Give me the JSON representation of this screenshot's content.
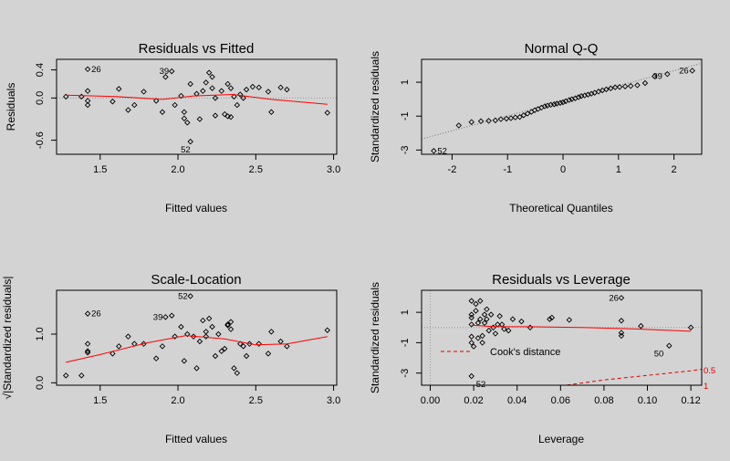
{
  "chart_data": [
    {
      "type": "scatter",
      "title": "Residuals vs Fitted",
      "xlabel": "Fitted values",
      "ylabel": "Residuals",
      "xlim": [
        1.22,
        3.02
      ],
      "ylim": [
        -0.8,
        0.55
      ],
      "xticks": [
        1.5,
        2.0,
        2.5,
        3.0
      ],
      "xtick_labels": [
        "1.5",
        "2.0",
        "2.5",
        "3.0"
      ],
      "yticks": [
        0.4,
        0.0,
        -0.6
      ],
      "ytick_labels": [
        "0.4",
        "0.0",
        "-0.6"
      ],
      "reference_line_y": 0,
      "points": [
        [
          1.28,
          0.02
        ],
        [
          1.38,
          0.02
        ],
        [
          1.42,
          0.41
        ],
        [
          1.42,
          -0.04
        ],
        [
          1.42,
          -0.1
        ],
        [
          1.42,
          0.1
        ],
        [
          1.58,
          -0.05
        ],
        [
          1.62,
          0.13
        ],
        [
          1.68,
          -0.17
        ],
        [
          1.72,
          -0.1
        ],
        [
          1.78,
          0.09
        ],
        [
          1.86,
          -0.04
        ],
        [
          1.9,
          -0.2
        ],
        [
          1.92,
          0.3
        ],
        [
          1.96,
          0.38
        ],
        [
          1.98,
          -0.1
        ],
        [
          2.02,
          0.03
        ],
        [
          2.04,
          -0.2
        ],
        [
          2.04,
          -0.29
        ],
        [
          2.06,
          -0.35
        ],
        [
          2.08,
          -0.62
        ],
        [
          2.08,
          0.2
        ],
        [
          2.12,
          0.06
        ],
        [
          2.14,
          -0.3
        ],
        [
          2.16,
          0.1
        ],
        [
          2.18,
          0.22
        ],
        [
          2.2,
          0.36
        ],
        [
          2.22,
          0.3
        ],
        [
          2.22,
          0.14
        ],
        [
          2.24,
          -0.25
        ],
        [
          2.24,
          0.0
        ],
        [
          2.28,
          0.1
        ],
        [
          2.3,
          -0.23
        ],
        [
          2.32,
          -0.26
        ],
        [
          2.32,
          0.2
        ],
        [
          2.34,
          -0.27
        ],
        [
          2.34,
          0.14
        ],
        [
          2.36,
          0.02
        ],
        [
          2.38,
          -0.1
        ],
        [
          2.4,
          0.05
        ],
        [
          2.42,
          0.0
        ],
        [
          2.44,
          0.12
        ],
        [
          2.48,
          0.16
        ],
        [
          2.52,
          0.15
        ],
        [
          2.58,
          0.09
        ],
        [
          2.6,
          -0.2
        ],
        [
          2.66,
          0.15
        ],
        [
          2.7,
          0.12
        ],
        [
          2.96,
          -0.21
        ]
      ],
      "smooth": [
        [
          1.28,
          0.04
        ],
        [
          1.6,
          0.02
        ],
        [
          1.9,
          -0.02
        ],
        [
          2.1,
          0.03
        ],
        [
          2.35,
          0.05
        ],
        [
          2.6,
          -0.02
        ],
        [
          2.96,
          -0.09
        ]
      ],
      "point_labels": [
        {
          "text": "26",
          "x": 1.42,
          "y": 0.41
        },
        {
          "text": "39",
          "x": 1.96,
          "y": 0.38
        },
        {
          "text": "52",
          "x": 2.08,
          "y": -0.62
        }
      ]
    },
    {
      "type": "scatter",
      "title": "Normal Q-Q",
      "xlabel": "Theoretical Quantiles",
      "ylabel": "Standardized residuals",
      "xlim": [
        -2.55,
        2.5
      ],
      "ylim": [
        -3.25,
        2.35
      ],
      "xticks": [
        -2,
        -1,
        0,
        1,
        2
      ],
      "xtick_labels": [
        "-2",
        "-1",
        "0",
        "1",
        "2"
      ],
      "yticks": [
        1,
        -1,
        -3
      ],
      "ytick_labels": [
        "1",
        "-1",
        "-3"
      ],
      "reference_line": [
        [
          -2.55,
          -2.35
        ],
        [
          2.5,
          2.12
        ]
      ],
      "points": [
        [
          -2.33,
          -3.05
        ],
        [
          -1.88,
          -1.55
        ],
        [
          -1.65,
          -1.35
        ],
        [
          -1.48,
          -1.3
        ],
        [
          -1.34,
          -1.28
        ],
        [
          -1.22,
          -1.25
        ],
        [
          -1.12,
          -1.18
        ],
        [
          -1.02,
          -1.15
        ],
        [
          -0.94,
          -1.12
        ],
        [
          -0.86,
          -1.08
        ],
        [
          -0.78,
          -1.05
        ],
        [
          -0.71,
          -0.95
        ],
        [
          -0.64,
          -0.85
        ],
        [
          -0.57,
          -0.75
        ],
        [
          -0.51,
          -0.65
        ],
        [
          -0.45,
          -0.58
        ],
        [
          -0.39,
          -0.5
        ],
        [
          -0.33,
          -0.42
        ],
        [
          -0.28,
          -0.38
        ],
        [
          -0.22,
          -0.33
        ],
        [
          -0.16,
          -0.3
        ],
        [
          -0.11,
          -0.26
        ],
        [
          -0.05,
          -0.22
        ],
        [
          0.0,
          -0.18
        ],
        [
          0.05,
          -0.12
        ],
        [
          0.11,
          -0.05
        ],
        [
          0.16,
          0.0
        ],
        [
          0.22,
          0.05
        ],
        [
          0.28,
          0.12
        ],
        [
          0.33,
          0.18
        ],
        [
          0.39,
          0.22
        ],
        [
          0.45,
          0.27
        ],
        [
          0.51,
          0.32
        ],
        [
          0.57,
          0.38
        ],
        [
          0.64,
          0.45
        ],
        [
          0.71,
          0.52
        ],
        [
          0.78,
          0.58
        ],
        [
          0.86,
          0.64
        ],
        [
          0.94,
          0.7
        ],
        [
          1.02,
          0.72
        ],
        [
          1.12,
          0.75
        ],
        [
          1.22,
          0.78
        ],
        [
          1.34,
          0.82
        ],
        [
          1.48,
          0.95
        ],
        [
          1.65,
          1.35
        ],
        [
          1.88,
          1.48
        ],
        [
          2.33,
          1.68
        ]
      ],
      "point_labels": [
        {
          "text": "39",
          "x": 1.65,
          "y": 1.35
        },
        {
          "text": "26",
          "x": 2.33,
          "y": 1.68
        },
        {
          "text": "52",
          "x": -2.33,
          "y": -3.05
        }
      ]
    },
    {
      "type": "scatter",
      "title": "Scale-Location",
      "xlabel": "Fitted values",
      "ylabel": "√|Standardized residuals|",
      "xlim": [
        1.22,
        3.02
      ],
      "ylim": [
        -0.05,
        1.9
      ],
      "xticks": [
        1.5,
        2.0,
        2.5,
        3.0
      ],
      "xtick_labels": [
        "1.5",
        "2.0",
        "2.5",
        "3.0"
      ],
      "yticks": [
        0.0,
        1.0
      ],
      "ytick_labels": [
        "0.0",
        "1.0"
      ],
      "points": [
        [
          1.28,
          0.15
        ],
        [
          1.38,
          0.15
        ],
        [
          1.42,
          1.42
        ],
        [
          1.42,
          0.65
        ],
        [
          1.42,
          0.62
        ],
        [
          1.42,
          0.8
        ],
        [
          1.58,
          0.6
        ],
        [
          1.62,
          0.75
        ],
        [
          1.68,
          0.95
        ],
        [
          1.72,
          0.8
        ],
        [
          1.78,
          0.8
        ],
        [
          1.86,
          0.5
        ],
        [
          1.9,
          0.75
        ],
        [
          1.92,
          1.35
        ],
        [
          1.96,
          1.38
        ],
        [
          1.98,
          0.95
        ],
        [
          2.02,
          1.15
        ],
        [
          2.04,
          0.45
        ],
        [
          2.06,
          1.0
        ],
        [
          2.08,
          1.78
        ],
        [
          2.1,
          0.95
        ],
        [
          2.12,
          0.3
        ],
        [
          2.14,
          0.85
        ],
        [
          2.16,
          1.28
        ],
        [
          2.18,
          1.05
        ],
        [
          2.18,
          0.95
        ],
        [
          2.2,
          1.32
        ],
        [
          2.22,
          1.15
        ],
        [
          2.24,
          0.55
        ],
        [
          2.26,
          1.0
        ],
        [
          2.28,
          0.65
        ],
        [
          2.3,
          0.7
        ],
        [
          2.32,
          1.18
        ],
        [
          2.32,
          1.2
        ],
        [
          2.34,
          1.25
        ],
        [
          2.34,
          1.1
        ],
        [
          2.36,
          0.3
        ],
        [
          2.38,
          0.2
        ],
        [
          2.4,
          0.8
        ],
        [
          2.42,
          0.75
        ],
        [
          2.44,
          0.55
        ],
        [
          2.46,
          0.8
        ],
        [
          2.52,
          0.8
        ],
        [
          2.58,
          0.6
        ],
        [
          2.6,
          1.05
        ],
        [
          2.66,
          0.85
        ],
        [
          2.7,
          0.75
        ],
        [
          2.96,
          1.08
        ]
      ],
      "smooth": [
        [
          1.28,
          0.42
        ],
        [
          1.5,
          0.58
        ],
        [
          1.8,
          0.82
        ],
        [
          2.05,
          0.97
        ],
        [
          2.3,
          0.9
        ],
        [
          2.5,
          0.78
        ],
        [
          2.7,
          0.8
        ],
        [
          2.96,
          0.95
        ]
      ],
      "point_labels": [
        {
          "text": "26",
          "x": 1.42,
          "y": 1.42
        },
        {
          "text": "39",
          "x": 1.92,
          "y": 1.35
        },
        {
          "text": "52",
          "x": 2.08,
          "y": 1.78
        }
      ]
    },
    {
      "type": "scatter",
      "title": "Residuals vs Leverage",
      "xlabel": "Leverage",
      "ylabel": "Standardized residuals",
      "xlim": [
        -0.004,
        0.125
      ],
      "ylim": [
        -3.8,
        2.45
      ],
      "xticks": [
        0.0,
        0.02,
        0.04,
        0.06,
        0.08,
        0.1,
        0.12
      ],
      "xtick_labels": [
        "0.00",
        "0.02",
        "0.04",
        "0.06",
        "0.08",
        "0.10",
        "0.12"
      ],
      "yticks": [
        1,
        -1,
        -3
      ],
      "ytick_labels": [
        "1",
        "-1",
        "-3"
      ],
      "reference_line_y": 0,
      "reference_line_x": 0,
      "points": [
        [
          0.019,
          1.75
        ],
        [
          0.019,
          0.85
        ],
        [
          0.019,
          0.65
        ],
        [
          0.019,
          0.2
        ],
        [
          0.019,
          -0.6
        ],
        [
          0.019,
          -1.0
        ],
        [
          0.019,
          -3.2
        ],
        [
          0.02,
          -1.25
        ],
        [
          0.021,
          1.55
        ],
        [
          0.021,
          1.1
        ],
        [
          0.022,
          0.3
        ],
        [
          0.022,
          -0.7
        ],
        [
          0.023,
          1.75
        ],
        [
          0.023,
          0.55
        ],
        [
          0.024,
          -0.55
        ],
        [
          0.024,
          -1.0
        ],
        [
          0.025,
          0.85
        ],
        [
          0.025,
          0.3
        ],
        [
          0.026,
          1.2
        ],
        [
          0.026,
          0.55
        ],
        [
          0.027,
          -0.2
        ],
        [
          0.028,
          0.85
        ],
        [
          0.029,
          0.0
        ],
        [
          0.03,
          -0.4
        ],
        [
          0.031,
          0.2
        ],
        [
          0.032,
          0.75
        ],
        [
          0.033,
          0.2
        ],
        [
          0.034,
          -0.1
        ],
        [
          0.036,
          -0.2
        ],
        [
          0.038,
          0.55
        ],
        [
          0.042,
          0.4
        ],
        [
          0.046,
          0.0
        ],
        [
          0.055,
          0.55
        ],
        [
          0.056,
          0.65
        ],
        [
          0.064,
          0.5
        ],
        [
          0.088,
          -0.55
        ],
        [
          0.088,
          -0.35
        ],
        [
          0.088,
          0.45
        ],
        [
          0.097,
          0.1
        ],
        [
          0.11,
          -1.2
        ],
        [
          0.12,
          0.0
        ],
        [
          0.088,
          1.95
        ]
      ],
      "smooth": [
        [
          0.019,
          0.15
        ],
        [
          0.03,
          0.05
        ],
        [
          0.045,
          0.05
        ],
        [
          0.07,
          0.0
        ],
        [
          0.095,
          -0.1
        ],
        [
          0.12,
          -0.25
        ]
      ],
      "point_labels": [
        {
          "text": "26",
          "x": 0.088,
          "y": 1.95
        },
        {
          "text": "50",
          "x": 0.11,
          "y": -1.2
        },
        {
          "text": "52",
          "x": 0.019,
          "y": -3.2
        }
      ],
      "cooks_distance": {
        "legend": "Cook's distance",
        "level_labels": [
          "0.5",
          "1"
        ],
        "curve_05": [
          [
            0.06,
            -3.85
          ],
          [
            0.08,
            -3.45
          ],
          [
            0.1,
            -3.15
          ],
          [
            0.12,
            -2.85
          ],
          [
            0.125,
            -2.75
          ]
        ],
        "color": "#e00000"
      }
    }
  ]
}
